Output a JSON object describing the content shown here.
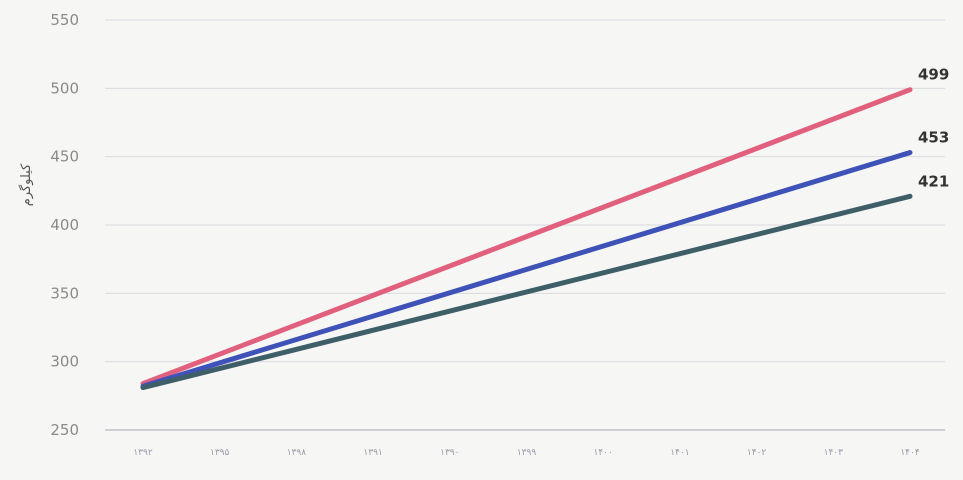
{
  "chart_data": {
    "type": "line",
    "title": "",
    "xlabel": "",
    "ylabel": "کیلوگرم",
    "ylim": [
      250,
      550
    ],
    "yticks": [
      250,
      300,
      350,
      400,
      450,
      500,
      550
    ],
    "grid": true,
    "legend": "none",
    "categories": [
      "۱۳۹۲",
      "۱۳۹۵",
      "۱۳۹۸",
      "۱۳۹۱",
      "۱۳۹۰",
      "۱۳۹۹",
      "۱۴۰۰",
      "۱۴۰۱",
      "۱۴۰۲",
      "۱۴۰۳",
      "۱۴۰۴"
    ],
    "series": [
      {
        "color": "#e0607e",
        "start": 284,
        "end": 499,
        "end_label": "499",
        "values": [
          284,
          304,
          325,
          347,
          369,
          391,
          413,
          435,
          457,
          479,
          499
        ]
      },
      {
        "color": "#3e52b8",
        "start": 282,
        "end": 453,
        "end_label": "453",
        "values": [
          282,
          299,
          315,
          331,
          348,
          364,
          381,
          397,
          414,
          431,
          453
        ]
      },
      {
        "color": "#3f5f68",
        "start": 281,
        "end": 421,
        "end_label": "421",
        "values": [
          281,
          294,
          307,
          320,
          333,
          346,
          360,
          373,
          386,
          399,
          421
        ]
      }
    ]
  }
}
